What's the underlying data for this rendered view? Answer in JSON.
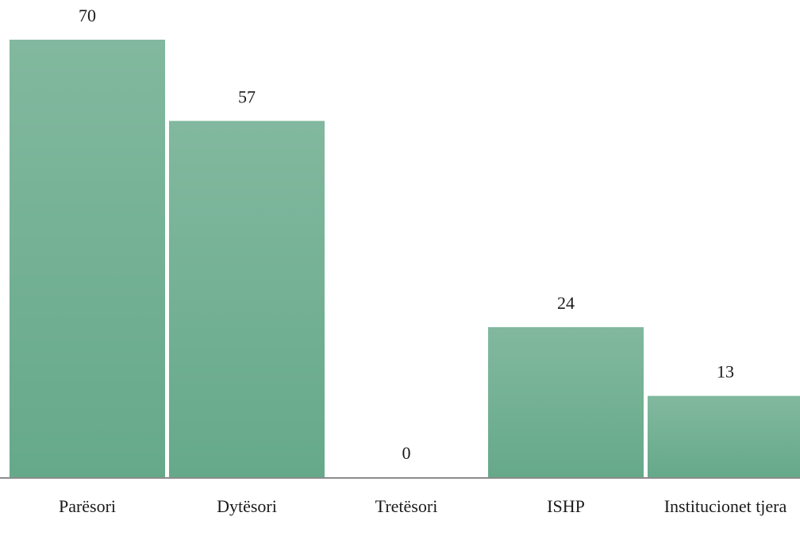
{
  "chart_data": {
    "type": "bar",
    "categories": [
      "Parësori",
      "Dytësori",
      "Tretësori",
      "ISHP",
      "Institucionet tjera"
    ],
    "values": [
      70,
      57,
      0,
      24,
      13
    ],
    "color": "#66a98a",
    "ylim": [
      0,
      70
    ]
  }
}
